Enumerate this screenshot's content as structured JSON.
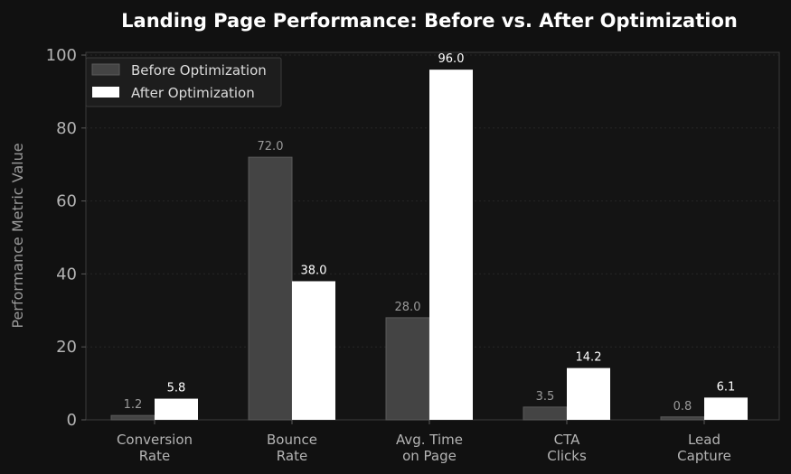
{
  "chart_data": {
    "type": "bar",
    "title": "Landing Page Performance: Before vs. After Optimization",
    "xlabel": "",
    "ylabel": "Performance Metric Value",
    "ylim": [
      0,
      100
    ],
    "yticks": [
      "0",
      "20",
      "40",
      "60",
      "80",
      "100"
    ],
    "categories": [
      [
        "Conversion",
        "Rate"
      ],
      [
        "Bounce",
        "Rate"
      ],
      [
        "Avg. Time",
        "on Page"
      ],
      [
        "CTA",
        "Clicks"
      ],
      [
        "Lead",
        "Capture"
      ]
    ],
    "series": [
      {
        "name": "Before Optimization",
        "values": [
          1.2,
          72.0,
          28.0,
          3.5,
          0.8
        ],
        "labels": [
          "1.2",
          "72.0",
          "28.0",
          "3.5",
          "0.8"
        ],
        "color": "#444444"
      },
      {
        "name": "After Optimization",
        "values": [
          5.8,
          38.0,
          96.0,
          14.2,
          6.1
        ],
        "labels": [
          "5.8",
          "38.0",
          "96.0",
          "14.2",
          "6.1"
        ],
        "color": "#ffffff"
      }
    ],
    "grid": true,
    "legend": "top-left"
  }
}
